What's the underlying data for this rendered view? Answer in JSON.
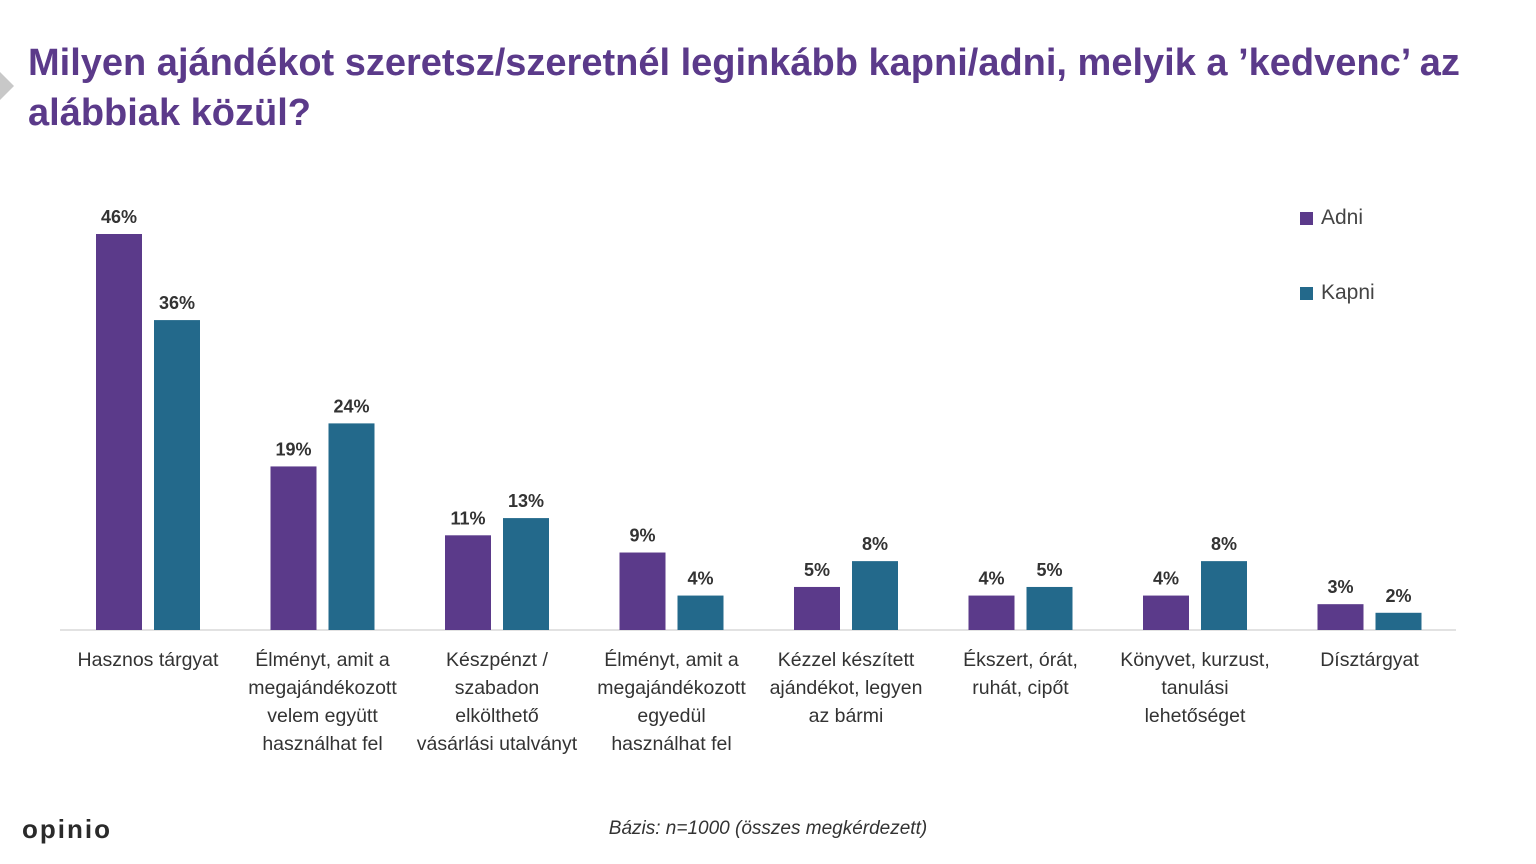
{
  "title": "Milyen ajándékot szeretsz/szeretnél leginkább kapni/adni, melyik a ’kedvenc’ az alábbiak közül?",
  "footnote": "Bázis: n=1000 (összes megkérdezett)",
  "logo": {
    "text": "opinio",
    "accent_color": "#f0a500"
  },
  "chart_data": {
    "type": "bar",
    "categories": [
      "Hasznos tárgyat",
      "Élményt, amit a megajándékozott velem együtt használhat fel",
      "Készpénzt / szabadon elkölthető vásárlási utalványt",
      "Élményt, amit a megajándékozott egyedül használhat fel",
      "Kézzel készített ajándékot, legyen az bármi",
      "Ékszert, órát, ruhát, cipőt",
      "Könyvet, kurzust, tanulási lehetőséget",
      "Dísztárgyat"
    ],
    "category_lines": [
      [
        "Hasznos tárgyat"
      ],
      [
        "Élményt, amit a",
        "megajándékozott",
        "velem együtt",
        "használhat fel"
      ],
      [
        "Készpénzt /",
        "szabadon",
        "elkölthető",
        "vásárlási utalványt"
      ],
      [
        "Élményt, amit a",
        "megajándékozott",
        "egyedül",
        "használhat fel"
      ],
      [
        "Kézzel készített",
        "ajándékot, legyen",
        "az bármi"
      ],
      [
        "Ékszert, órát,",
        "ruhát, cipőt"
      ],
      [
        "Könyvet, kurzust,",
        "tanulási",
        "lehetőséget"
      ],
      [
        "Dísztárgyat"
      ]
    ],
    "series": [
      {
        "name": "Adni",
        "color": "#5b3a8a",
        "values": [
          46,
          19,
          11,
          9,
          5,
          4,
          4,
          3
        ]
      },
      {
        "name": "Kapni",
        "color": "#23698b",
        "values": [
          36,
          24,
          13,
          4,
          8,
          5,
          8,
          2
        ]
      }
    ],
    "value_suffix": "%",
    "ylim": [
      0,
      46
    ],
    "grid": false,
    "legend_position": "top-right"
  }
}
